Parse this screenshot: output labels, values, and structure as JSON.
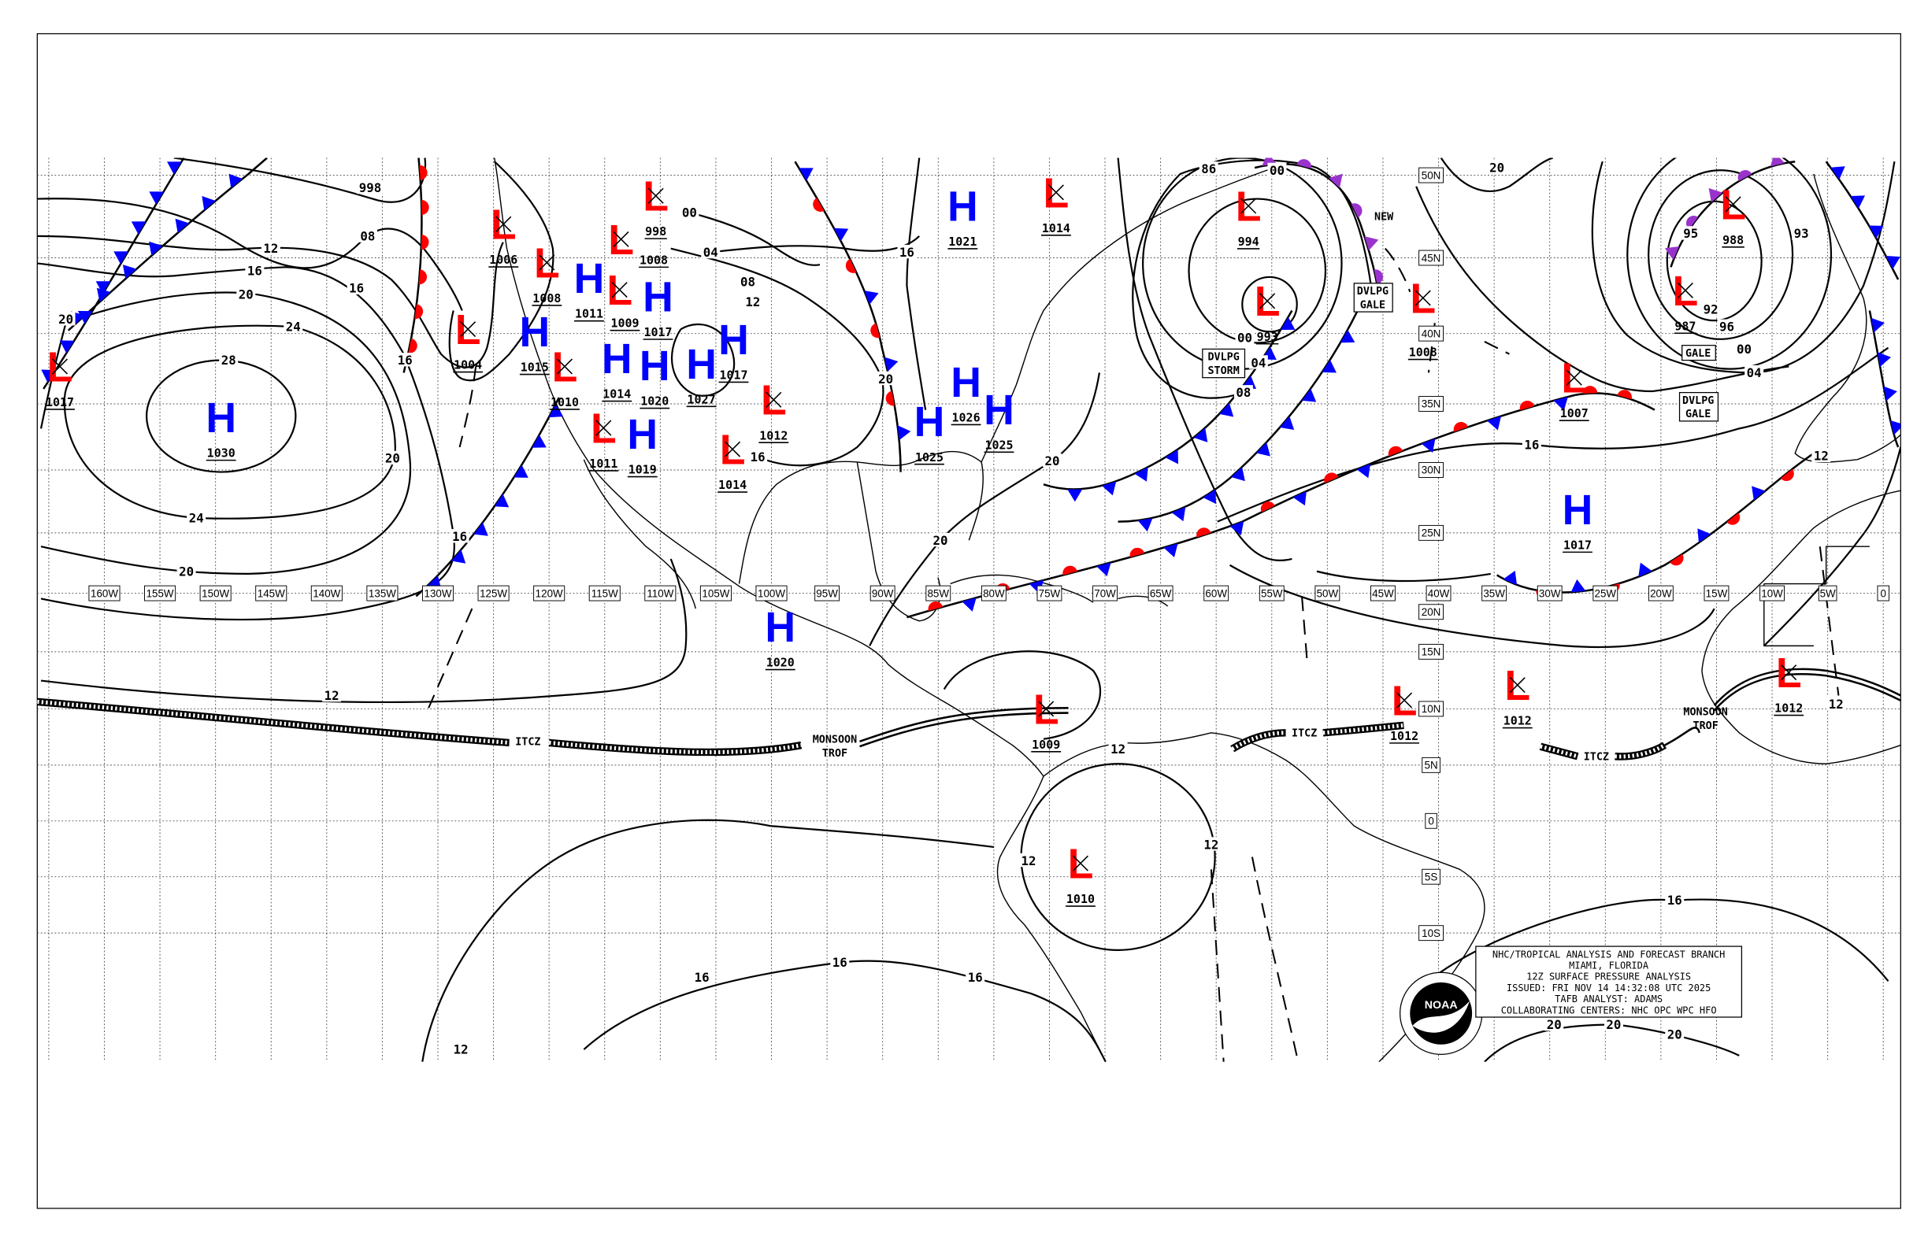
{
  "title_box": {
    "lines": [
      "NHC/TROPICAL ANALYSIS AND FORECAST BRANCH",
      "MIAMI, FLORIDA",
      "12Z SURFACE PRESSURE ANALYSIS",
      "ISSUED: FRI NOV 14 14:32:08 UTC 2025",
      "TAFB ANALYST: ADAMS",
      "COLLABORATING CENTERS: NHC OPC WPC HFO"
    ]
  },
  "logo": {
    "text": "NOAA",
    "ring_text": "NATIONAL OCEANIC AND ATMOSPHERIC ADMINISTRATION U.S. DEPARTMENT OF COMMERCE"
  },
  "colors": {
    "high": "#0000FF",
    "low": "#FF0000",
    "cold_front": "#0000FF",
    "warm_front": "#FF0000",
    "occluded_front": "#9933CC",
    "isobar": "#000000"
  },
  "longitude_labels": [
    "160W",
    "155W",
    "150W",
    "145W",
    "140W",
    "135W",
    "130W",
    "125W",
    "120W",
    "115W",
    "110W",
    "105W",
    "100W",
    "95W",
    "90W",
    "85W",
    "80W",
    "75W",
    "70W",
    "65W",
    "60W",
    "55W",
    "50W",
    "45W",
    "40W",
    "35W",
    "30W",
    "25W",
    "20W",
    "15W",
    "10W",
    "5W",
    "0"
  ],
  "latitude_labels": [
    {
      "text": "50N",
      "lat": 50
    },
    {
      "text": "45N",
      "lat": 45
    },
    {
      "text": "40N",
      "lat": 40
    },
    {
      "text": "35N",
      "lat": 35
    },
    {
      "text": "30N",
      "lat": 30
    },
    {
      "text": "25N",
      "lat": 25
    },
    {
      "text": "20N",
      "lat": 20
    },
    {
      "text": "15N",
      "lat": 15
    },
    {
      "text": "10N",
      "lat": 10
    },
    {
      "text": "5N",
      "lat": 5
    },
    {
      "text": "0",
      "lat": 0
    },
    {
      "text": "5S",
      "lat": -5
    },
    {
      "text": "10S",
      "lat": -10
    }
  ],
  "pressure_centers": [
    {
      "type": "high",
      "symbol": "H",
      "value": "1030",
      "lon": -149.5,
      "lat": 34
    },
    {
      "type": "low",
      "symbol": "L",
      "value": "1017",
      "lon": -164,
      "lat": 37.7
    },
    {
      "type": "low",
      "symbol": "L",
      "value": "1004",
      "lon": -127.3,
      "lat": 40.3
    },
    {
      "type": "low",
      "symbol": "L",
      "value": "1006",
      "lon": -124.1,
      "lat": 47.1
    },
    {
      "type": "low",
      "symbol": "L",
      "value": "1008",
      "lon": -120.2,
      "lat": 44.7
    },
    {
      "type": "high",
      "symbol": "H",
      "value": "1011",
      "lon": -116.4,
      "lat": 43.7
    },
    {
      "type": "high",
      "symbol": "H",
      "value": "1015",
      "lon": -121.3,
      "lat": 40.9
    },
    {
      "type": "low",
      "symbol": "L",
      "value": "1009",
      "lon": -117.2,
      "lat": 42.2
    },
    {
      "type": "high",
      "symbol": "H",
      "value": "1014",
      "lon": -113.9,
      "lat": 40.6
    },
    {
      "type": "high",
      "symbol": "H",
      "value": "1017",
      "lon": -110.2,
      "lat": 42.5
    },
    {
      "type": "low",
      "symbol": "L",
      "value": "1008",
      "lon": -114.9,
      "lat": 43.5
    },
    {
      "type": "high",
      "symbol": "H",
      "value": "1020",
      "lon": -110.5,
      "lat": 39.6
    },
    {
      "type": "low",
      "symbol": "L",
      "value": "1010",
      "lon": -119.6,
      "lat": 37.7
    },
    {
      "type": "high",
      "symbol": "H",
      "value": "1019",
      "lon": -111.6,
      "lat": 35.8
    },
    {
      "type": "low",
      "symbol": "L",
      "value": "1011",
      "lon": -115.1,
      "lat": 34.6
    },
    {
      "type": "high",
      "symbol": "H",
      "value": "1027",
      "lon": -106.3,
      "lat": 37.9
    },
    {
      "type": "high",
      "symbol": "H",
      "value": "1017",
      "lon": -103.4,
      "lat": 39.6
    },
    {
      "type": "low",
      "symbol": "L",
      "value": "998",
      "lon": -110.4,
      "lat": 48.8
    },
    {
      "type": "high",
      "symbol": "H",
      "value": "1021",
      "lon": -82.8,
      "lat": 48.2
    },
    {
      "type": "low",
      "symbol": "L",
      "value": "1014",
      "lon": -74.4,
      "lat": 49.0
    },
    {
      "type": "low",
      "symbol": "L",
      "value": "1012",
      "lon": -99.8,
      "lat": 35.3
    },
    {
      "type": "low",
      "symbol": "L",
      "value": "1014",
      "lon": -103.5,
      "lat": 31.6
    },
    {
      "type": "high",
      "symbol": "H",
      "value": "1026",
      "lon": -82.5,
      "lat": 36.6
    },
    {
      "type": "high",
      "symbol": "H",
      "value": "1025",
      "lon": -85.8,
      "lat": 33.7
    },
    {
      "type": "high",
      "symbol": "H",
      "value": "1025",
      "lon": -80.2,
      "lat": 34.6
    },
    {
      "type": "high",
      "symbol": "H",
      "value": "1020",
      "lon": -99.2,
      "lat": 20.0
    },
    {
      "type": "low",
      "symbol": "L",
      "value": "994",
      "lon": -57.1,
      "lat": 48.2
    },
    {
      "type": "low",
      "symbol": "L",
      "value": "993",
      "lon": -55.4,
      "lat": 42.2
    },
    {
      "type": "low",
      "symbol": "L",
      "value": "1008",
      "lon": -41.4,
      "lat": 42.4
    },
    {
      "type": "low",
      "symbol": "L",
      "value": "1007",
      "lon": -27.8,
      "lat": 36.9
    },
    {
      "type": "low",
      "symbol": "L",
      "value": "988",
      "lon": -13.5,
      "lat": 48.3
    },
    {
      "type": "low",
      "symbol": "L",
      "value": "987",
      "lon": -17.8,
      "lat": 42.9
    },
    {
      "type": "high",
      "symbol": "H",
      "value": "1017",
      "lon": -27.5,
      "lat": 26.9
    },
    {
      "type": "low",
      "symbol": "L",
      "value": "1012",
      "lon": -8.5,
      "lat": 13.2
    },
    {
      "type": "low",
      "symbol": "L",
      "value": "1012",
      "lon": -41.1,
      "lat": 11.1
    },
    {
      "type": "low",
      "symbol": "L",
      "value": "1012",
      "lon": -32.9,
      "lat": 12.1
    },
    {
      "type": "low",
      "symbol": "L",
      "value": "1009",
      "lon": -75.3,
      "lat": 10.0
    },
    {
      "type": "low",
      "symbol": "L",
      "value": "1010",
      "lon": -72.2,
      "lat": -3.8
    }
  ],
  "isobar_labels": [
    "998",
    "08",
    "12",
    "16",
    "16",
    "20",
    "20",
    "24",
    "28",
    "16",
    "20",
    "24",
    "16",
    "20",
    "12",
    "12",
    "16",
    "16",
    "16",
    "16",
    "20",
    "20",
    "20",
    "12",
    "12",
    "12",
    "20",
    "20",
    "20",
    "16",
    "12",
    "08",
    "04",
    "00",
    "16",
    "04",
    "00",
    "08",
    "86",
    "00",
    "20",
    "95",
    "93",
    "92",
    "96",
    "00",
    "04",
    "16",
    "12",
    "12"
  ],
  "feature_labels": {
    "itcz": "ITCZ",
    "monsoon_trough": [
      "MONSOON",
      "TROF"
    ],
    "developing_storm": [
      "DVLPG",
      "STORM"
    ],
    "developing_gale": [
      "DVLPG",
      "GALE"
    ],
    "gale": "GALE",
    "new": "NEW"
  }
}
